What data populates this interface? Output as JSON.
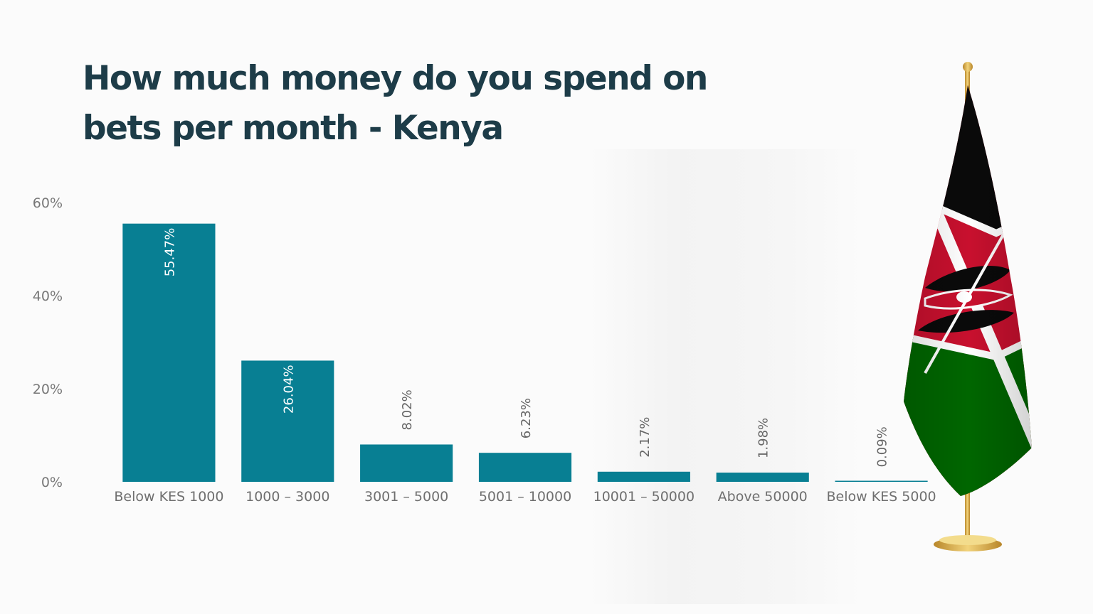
{
  "title": "How much money do you spend on bets per month - Kenya",
  "colors": {
    "bar": "#087f93",
    "title": "#1d3c48",
    "axis_text": "#777777",
    "flag_black": "#0a0a0a",
    "flag_red": "#c8102e",
    "flag_green": "#006600",
    "flag_white": "#ffffff",
    "pole_gold": "#d4a93a"
  },
  "decoration": {
    "flag_icon": "kenya-flag-icon"
  },
  "chart_data": {
    "type": "bar",
    "categories": [
      "Below KES 1000",
      "1000 – 3000",
      "3001 – 5000",
      "5001 – 10000",
      "10001 – 50000",
      "Above 50000",
      "Below KES 5000"
    ],
    "values": [
      55.47,
      26.04,
      8.02,
      6.23,
      2.17,
      1.98,
      0.09
    ],
    "data_labels": [
      "55.47%",
      "26.04%",
      "8.02%",
      "6.23%",
      "2.17%",
      "1.98%",
      "0.09%"
    ],
    "y_ticks": [
      0,
      20,
      40,
      60
    ],
    "y_tick_labels": [
      "0%",
      "20%",
      "40%",
      "60%"
    ],
    "ylim": [
      0,
      60
    ],
    "xlabel": "",
    "ylabel": "",
    "grid": false,
    "legend": "none"
  }
}
